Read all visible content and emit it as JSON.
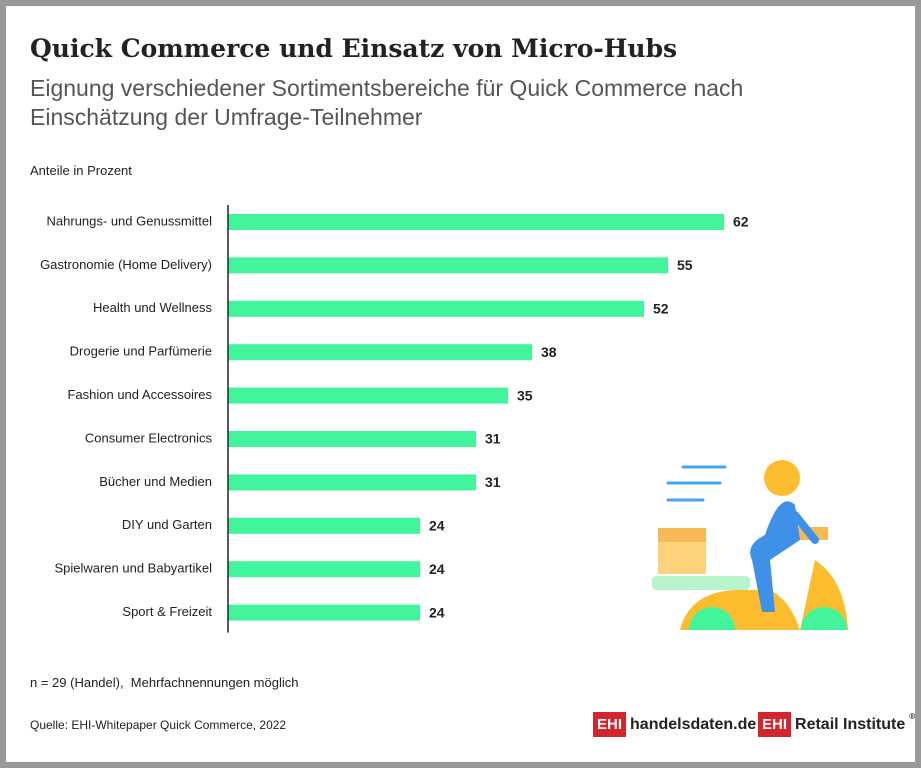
{
  "chart_data": {
    "type": "bar",
    "orientation": "horizontal",
    "title": "Quick Commerce und Einsatz von Micro-Hubs",
    "subtitle": "Eignung verschiedener Sortimentsbereiche für Quick Commerce nach Einschätzung der Umfrage-Teilnehmer",
    "unit_label": "Anteile in Prozent",
    "categories": [
      "Nahrungs- und Genussmittel",
      "Gastronomie (Home Delivery)",
      "Health und Wellness",
      "Drogerie und Parfümerie",
      "Fashion und Accessoires",
      "Consumer Electronics",
      "Bücher und Medien",
      "DIY und Garten",
      "Spielwaren und Babyartikel",
      "Sport & Freizeit"
    ],
    "values": [
      62,
      55,
      52,
      38,
      35,
      31,
      31,
      24,
      24,
      24
    ],
    "color": "#42f59c",
    "xlim": [
      0,
      62
    ],
    "note": "n = 29 (Handel),  Mehrfachnennungen möglich",
    "source": "Quelle: EHI-Whitepaper Quick Commerce, 2022"
  },
  "logos": [
    {
      "badge": "EHI",
      "text": "handelsdaten.de"
    },
    {
      "badge": "EHI",
      "text": "Retail Institute",
      "mark": "®"
    }
  ]
}
